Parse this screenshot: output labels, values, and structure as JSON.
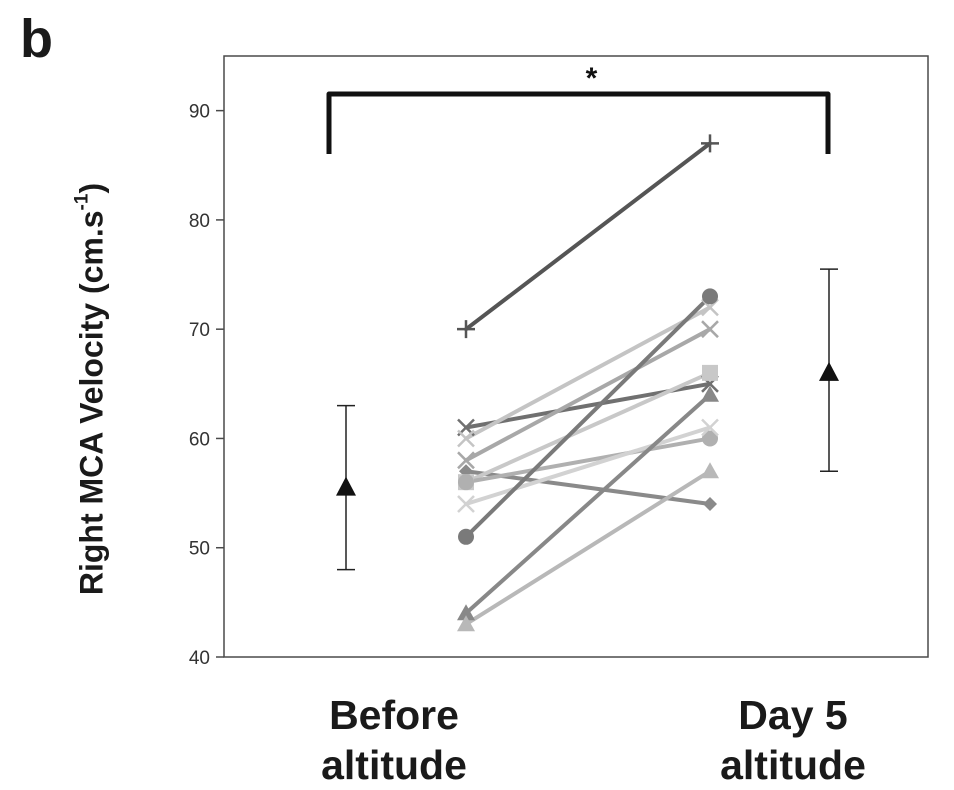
{
  "panel_label": "b",
  "chart_data": {
    "type": "line",
    "title": "",
    "ylabel": {
      "main": "Right MCA Velocity (cm.s",
      "sup": "-1",
      "close": ")"
    },
    "ylim": [
      40,
      95
    ],
    "yticks": [
      "40",
      "50",
      "60",
      "70",
      "80",
      "90"
    ],
    "categories": [
      {
        "line1": "Before",
        "line2": "altitude"
      },
      {
        "line1": "Day 5",
        "line2": "altitude"
      }
    ],
    "individuals": [
      {
        "before": 70,
        "day5": 87,
        "marker": "plus",
        "color": "#555555"
      },
      {
        "before": 61,
        "day5": 65,
        "marker": "x",
        "color": "#707070"
      },
      {
        "before": 60,
        "day5": 72,
        "marker": "x",
        "color": "#c4c4c4"
      },
      {
        "before": 58,
        "day5": 70,
        "marker": "x",
        "color": "#a8a8a8"
      },
      {
        "before": 57,
        "day5": 54,
        "marker": "diamond",
        "color": "#8a8a8a"
      },
      {
        "before": 56,
        "day5": 66,
        "marker": "square",
        "color": "#c8c8c8"
      },
      {
        "before": 56,
        "day5": 60,
        "marker": "circle",
        "color": "#b0b0b0"
      },
      {
        "before": 54,
        "day5": 61,
        "marker": "x",
        "color": "#d2d2d2"
      },
      {
        "before": 51,
        "day5": 73,
        "marker": "circle",
        "color": "#7a7a7a"
      },
      {
        "before": 44,
        "day5": 64,
        "marker": "triangle",
        "color": "#888888"
      },
      {
        "before": 43,
        "day5": 57,
        "marker": "triangle",
        "color": "#b8b8b8"
      }
    ],
    "group_means": [
      {
        "category": "Before altitude",
        "mean": 55.5,
        "error_low": 48,
        "error_high": 63
      },
      {
        "category": "Day 5 altitude",
        "mean": 66,
        "error_low": 57,
        "error_high": 75.5
      }
    ],
    "significance": {
      "label": "*",
      "between": [
        "Before altitude",
        "Day 5 altitude"
      ]
    },
    "grid": false,
    "legend": "none"
  }
}
